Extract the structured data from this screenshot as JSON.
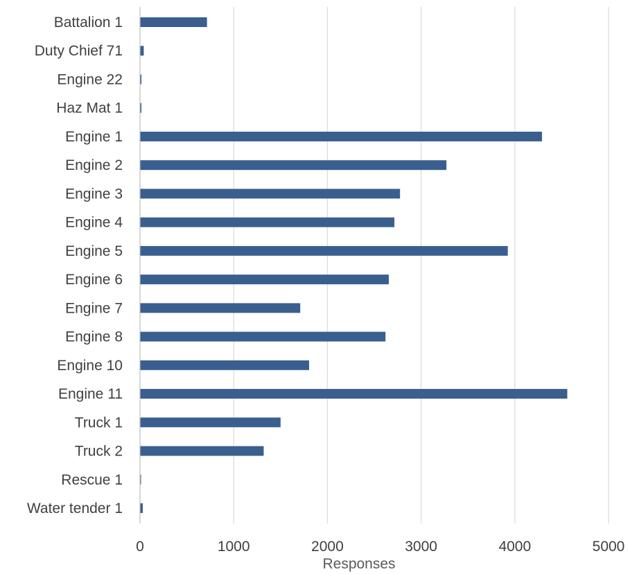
{
  "chart_data": {
    "type": "bar",
    "orientation": "horizontal",
    "title": "",
    "xlabel": "Responses",
    "ylabel": "",
    "xlim": [
      0,
      5000
    ],
    "x_ticks": [
      0,
      1000,
      2000,
      3000,
      4000,
      5000
    ],
    "grid": "vertical",
    "legend": "none",
    "bar_color": "#3A5F8F",
    "categories": [
      "Battalion 1",
      "Duty Chief 71",
      "Engine 22",
      "Haz Mat 1",
      "Engine 1",
      "Engine 2",
      "Engine 3",
      "Engine 4",
      "Engine 5",
      "Engine 6",
      "Engine 7",
      "Engine 8",
      "Engine 10",
      "Engine 11",
      "Truck 1",
      "Truck 2",
      "Rescue 1",
      "Water tender 1"
    ],
    "values": [
      715,
      40,
      15,
      15,
      4290,
      3270,
      2775,
      2715,
      3925,
      2655,
      1710,
      2620,
      1805,
      4560,
      1500,
      1320,
      5,
      30
    ]
  }
}
